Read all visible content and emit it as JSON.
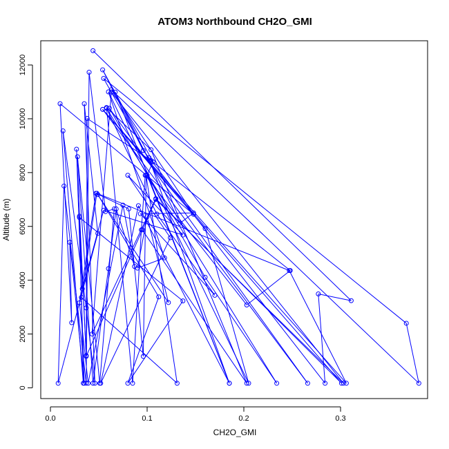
{
  "chart_data": {
    "type": "line",
    "title": "ATOM3 Northbound CH2O_GMI",
    "xlabel": "CH2O_GMI",
    "ylabel": "Altitude (m)",
    "xlim": [
      -0.01,
      0.39
    ],
    "ylim": [
      -400,
      12900
    ],
    "x_ticks": [
      0.0,
      0.1,
      0.2,
      0.3
    ],
    "x_tick_labels": [
      "0.0",
      "0.1",
      "0.2",
      "0.3"
    ],
    "y_ticks": [
      0,
      2000,
      4000,
      6000,
      8000,
      10000,
      12000
    ],
    "y_tick_labels": [
      "0",
      "2000",
      "4000",
      "6000",
      "8000",
      "10000",
      "12000"
    ],
    "grid": false,
    "series": [
      {
        "color": "#0000ff",
        "marker": "open-circle",
        "points": [
          [
            0.044,
            12530
          ],
          [
            0.311,
            3240
          ],
          [
            0.277,
            3490
          ],
          [
            0.284,
            170
          ],
          [
            0.102,
            8550
          ],
          [
            0.096,
            8820
          ],
          [
            0.054,
            11820
          ],
          [
            0.106,
            8400
          ],
          [
            0.1,
            7900
          ],
          [
            0.185,
            170
          ],
          [
            0.103,
            8430
          ],
          [
            0.055,
            11500
          ],
          [
            0.368,
            2400
          ],
          [
            0.381,
            170
          ],
          [
            0.063,
            11080
          ],
          [
            0.148,
            6450
          ],
          [
            0.01,
            10560
          ],
          [
            0.022,
            2420
          ],
          [
            0.02,
            5410
          ],
          [
            0.035,
            170
          ],
          [
            0.027,
            8870
          ],
          [
            0.037,
            1200
          ],
          [
            0.03,
            6380
          ],
          [
            0.034,
            170
          ],
          [
            0.013,
            9550
          ],
          [
            0.037,
            2970
          ],
          [
            0.046,
            170
          ],
          [
            0.035,
            10560
          ],
          [
            0.049,
            5740
          ],
          [
            0.008,
            170
          ],
          [
            0.014,
            7500
          ],
          [
            0.037,
            170
          ],
          [
            0.04,
            11730
          ],
          [
            0.057,
            6550
          ],
          [
            0.066,
            6650
          ],
          [
            0.051,
            170
          ],
          [
            0.028,
            8590
          ],
          [
            0.044,
            170
          ],
          [
            0.06,
            4430
          ],
          [
            0.068,
            6650
          ],
          [
            0.087,
            4510
          ],
          [
            0.075,
            6790
          ],
          [
            0.039,
            170
          ],
          [
            0.03,
            3160
          ],
          [
            0.047,
            7230
          ],
          [
            0.081,
            6650
          ],
          [
            0.096,
            1170
          ],
          [
            0.099,
            7890
          ],
          [
            0.131,
            170
          ],
          [
            0.032,
            3360
          ],
          [
            0.048,
            7230
          ],
          [
            0.247,
            4360
          ],
          [
            0.306,
            170
          ],
          [
            0.054,
            10350
          ],
          [
            0.16,
            5920
          ],
          [
            0.205,
            170
          ],
          [
            0.06,
            11000
          ],
          [
            0.118,
            4830
          ],
          [
            0.09,
            4450
          ],
          [
            0.1,
            6360
          ],
          [
            0.122,
            3170
          ],
          [
            0.049,
            7180
          ],
          [
            0.112,
            3380
          ],
          [
            0.08,
            170
          ],
          [
            0.137,
            3230
          ],
          [
            0.03,
            6330
          ],
          [
            0.033,
            3680
          ],
          [
            0.055,
            6600
          ],
          [
            0.137,
            5680
          ],
          [
            0.08,
            7900
          ],
          [
            0.124,
            5580
          ],
          [
            0.052,
            170
          ],
          [
            0.091,
            6770
          ],
          [
            0.185,
            170
          ],
          [
            0.067,
            10990
          ],
          [
            0.134,
            6120
          ],
          [
            0.148,
            6500
          ],
          [
            0.093,
            6470
          ],
          [
            0.17,
            3440
          ],
          [
            0.11,
            6460
          ],
          [
            0.058,
            10390
          ],
          [
            0.234,
            170
          ],
          [
            0.16,
            4110
          ],
          [
            0.061,
            10390
          ],
          [
            0.266,
            170
          ],
          [
            0.054,
            10350
          ],
          [
            0.301,
            170
          ],
          [
            0.109,
            7030
          ],
          [
            0.043,
            2000
          ],
          [
            0.063,
            10990
          ],
          [
            0.303,
            170
          ],
          [
            0.109,
            7000
          ],
          [
            0.037,
            1170
          ],
          [
            0.038,
            10010
          ],
          [
            0.104,
            8450
          ],
          [
            0.248,
            4360
          ],
          [
            0.203,
            3080
          ],
          [
            0.098,
            7900
          ],
          [
            0.094,
            5870
          ],
          [
            0.085,
            170
          ],
          [
            0.058,
            10420
          ],
          [
            0.104,
            8850
          ],
          [
            0.203,
            170
          ],
          [
            0.095,
            5870
          ]
        ]
      }
    ]
  }
}
